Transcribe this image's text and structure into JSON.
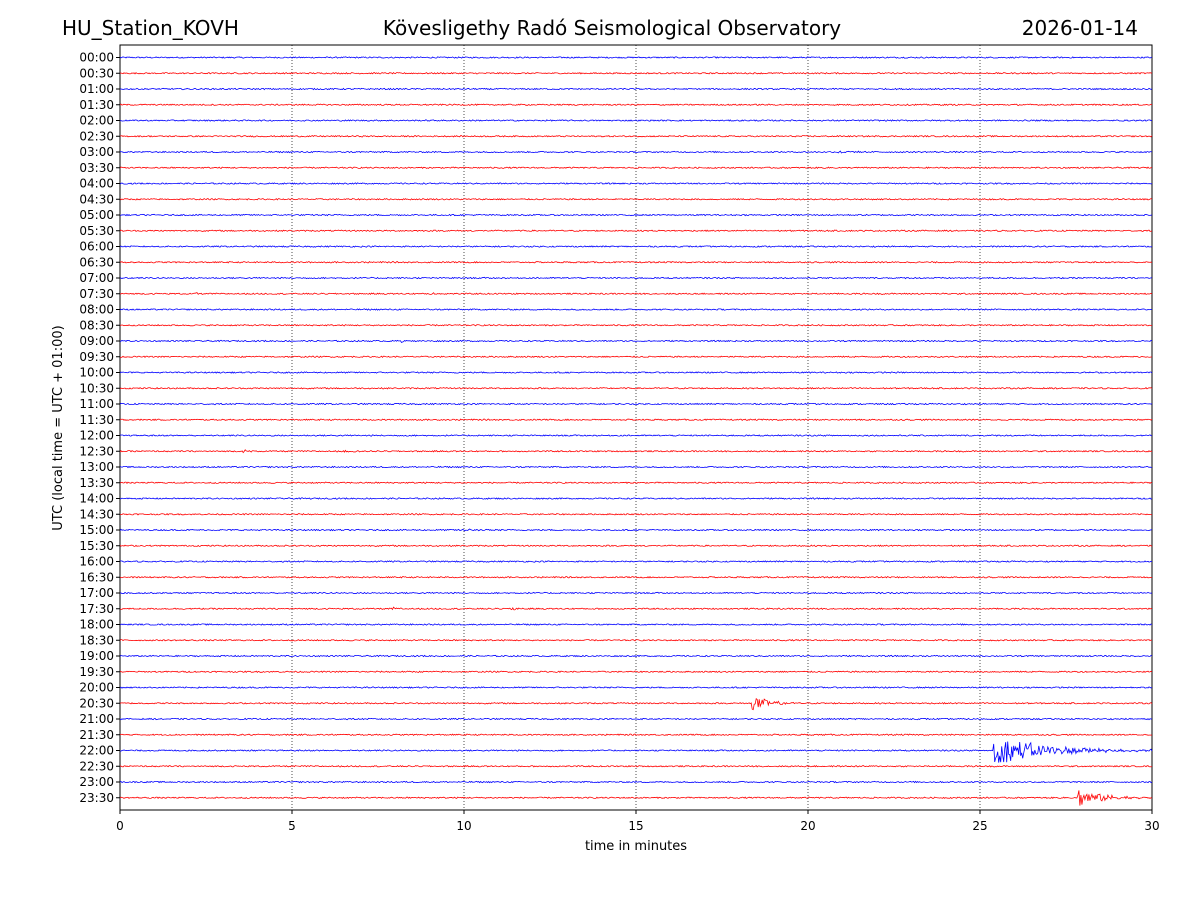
{
  "header": {
    "station": "HU_Station_KOVH",
    "observatory": "Kövesligethy Radó Seismological Observatory",
    "date": "2026-01-14"
  },
  "chart_data": {
    "type": "helicorder",
    "title": "Kövesligethy Radó Seismological Observatory",
    "xlabel": "time in minutes",
    "ylabel": "UTC (local time = UTC + 01:00)",
    "xlim": [
      0,
      30
    ],
    "x_ticks": [
      "0",
      "5",
      "10",
      "15",
      "20",
      "25",
      "30"
    ],
    "x_tick_values": [
      0,
      5,
      10,
      15,
      20,
      25,
      30
    ],
    "grid": "vertical-dotted",
    "trace_colors": [
      "#0000ff",
      "#ff0000"
    ],
    "rows": [
      "00:00",
      "00:30",
      "01:00",
      "01:30",
      "02:00",
      "02:30",
      "03:00",
      "03:30",
      "04:00",
      "04:30",
      "05:00",
      "05:30",
      "06:00",
      "06:30",
      "07:00",
      "07:30",
      "08:00",
      "08:30",
      "09:00",
      "09:30",
      "10:00",
      "10:30",
      "11:00",
      "11:30",
      "12:00",
      "12:30",
      "13:00",
      "13:30",
      "14:00",
      "14:30",
      "15:00",
      "15:30",
      "16:00",
      "16:30",
      "17:00",
      "17:30",
      "18:00",
      "18:30",
      "19:00",
      "19:30",
      "20:00",
      "20:30",
      "21:00",
      "21:30",
      "22:00",
      "22:30",
      "23:00",
      "23:30"
    ],
    "events": [
      {
        "row": "03:00",
        "minute": 20.9,
        "amplitude": 0.25,
        "duration": 1.0
      },
      {
        "row": "07:30",
        "minute": 2.2,
        "amplitude": 0.2,
        "duration": 0.4
      },
      {
        "row": "07:30",
        "minute": 9.0,
        "amplitude": 0.2,
        "duration": 0.5
      },
      {
        "row": "09:00",
        "minute": 8.2,
        "amplitude": 0.18,
        "duration": 0.5
      },
      {
        "row": "11:00",
        "minute": 20.3,
        "amplitude": 0.2,
        "duration": 0.4
      },
      {
        "row": "12:30",
        "minute": 3.6,
        "amplitude": 0.25,
        "duration": 0.4
      },
      {
        "row": "12:30",
        "minute": 6.5,
        "amplitude": 0.15,
        "duration": 0.8
      },
      {
        "row": "15:00",
        "minute": 9.9,
        "amplitude": 0.25,
        "duration": 0.9
      },
      {
        "row": "17:30",
        "minute": 7.9,
        "amplitude": 0.3,
        "duration": 0.4
      },
      {
        "row": "17:30",
        "minute": 11.4,
        "amplitude": 0.45,
        "duration": 0.4
      },
      {
        "row": "17:30",
        "minute": 23.6,
        "amplitude": 0.15,
        "duration": 0.5
      },
      {
        "row": "20:30",
        "minute": 18.35,
        "amplitude": 1.6,
        "duration": 1.3
      },
      {
        "row": "22:00",
        "minute": 25.4,
        "amplitude": 2.5,
        "duration": 4.6
      },
      {
        "row": "23:30",
        "minute": 27.85,
        "amplitude": 1.6,
        "duration": 2.2
      }
    ]
  }
}
